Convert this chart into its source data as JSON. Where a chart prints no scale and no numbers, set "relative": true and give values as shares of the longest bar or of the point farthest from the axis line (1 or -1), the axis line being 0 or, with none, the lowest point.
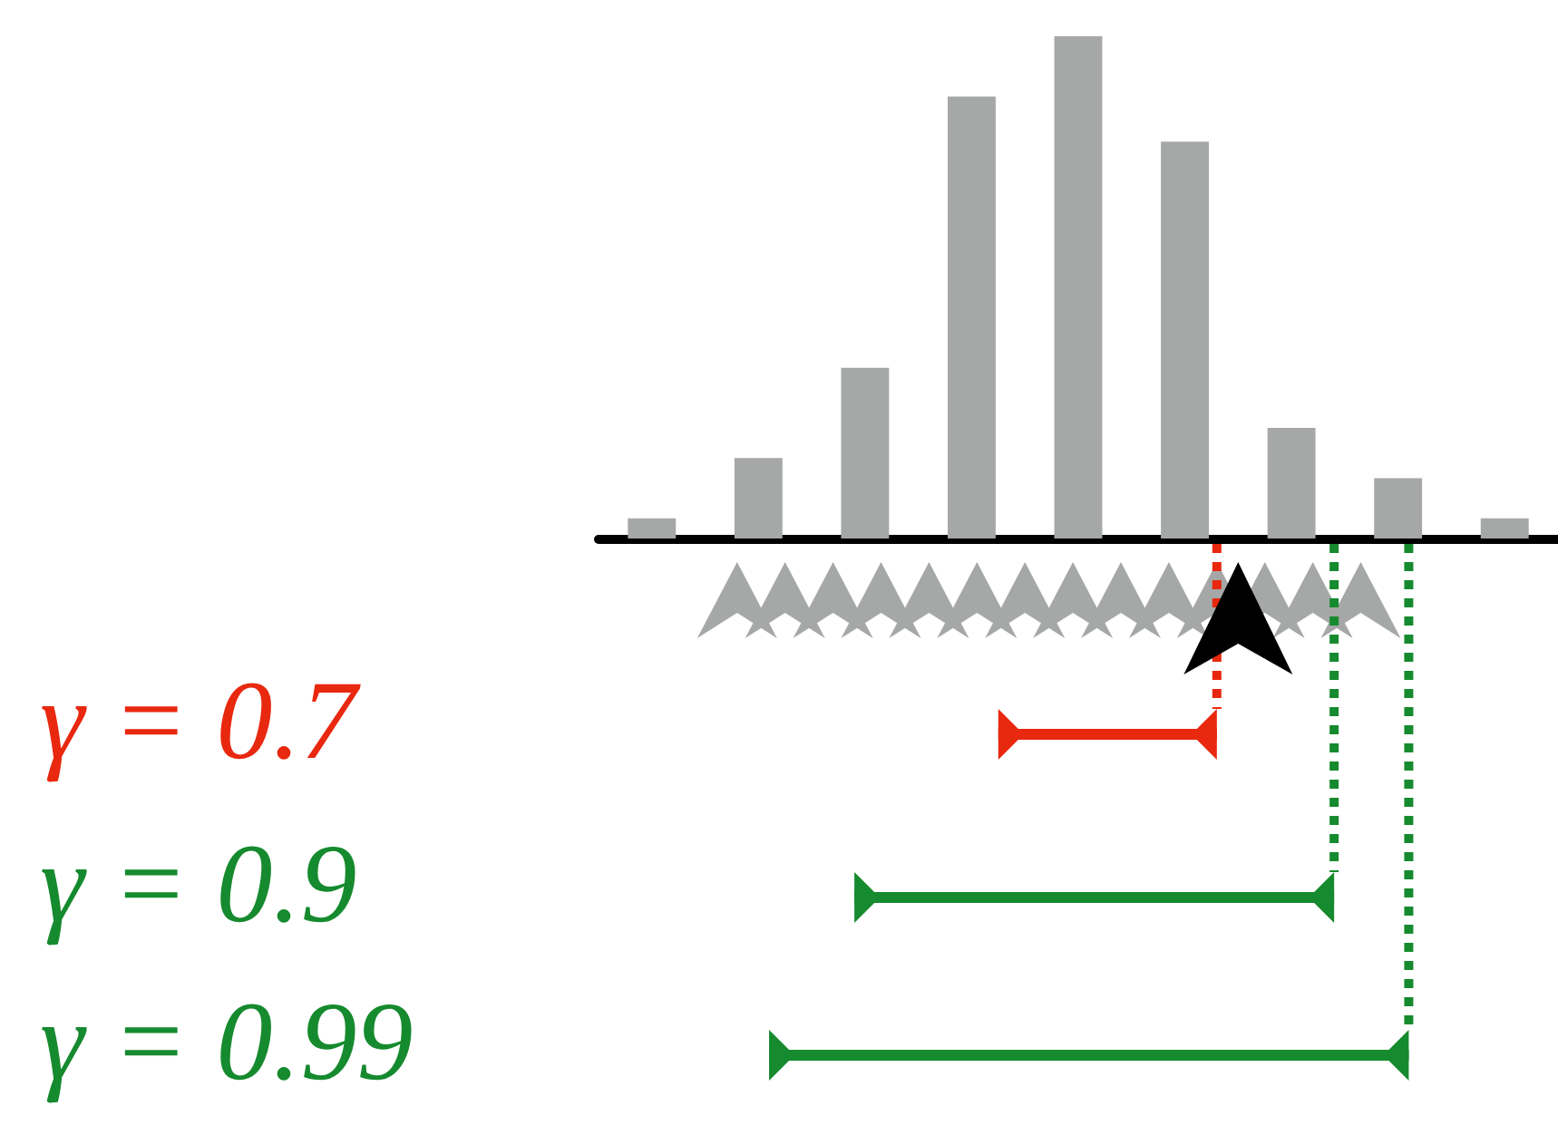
{
  "chart_data": {
    "type": "bar",
    "relative": true,
    "categories": [
      null,
      null,
      null,
      null,
      null,
      null,
      null,
      null,
      null
    ],
    "values": [
      0.04,
      0.16,
      0.34,
      0.88,
      1,
      0.79,
      0.22,
      0.12,
      0.04
    ],
    "color": "#a5a8a7",
    "grid": false,
    "annotations": [
      "γ = 0.7",
      "γ = 0.9",
      "γ = 0.99"
    ]
  }
}
